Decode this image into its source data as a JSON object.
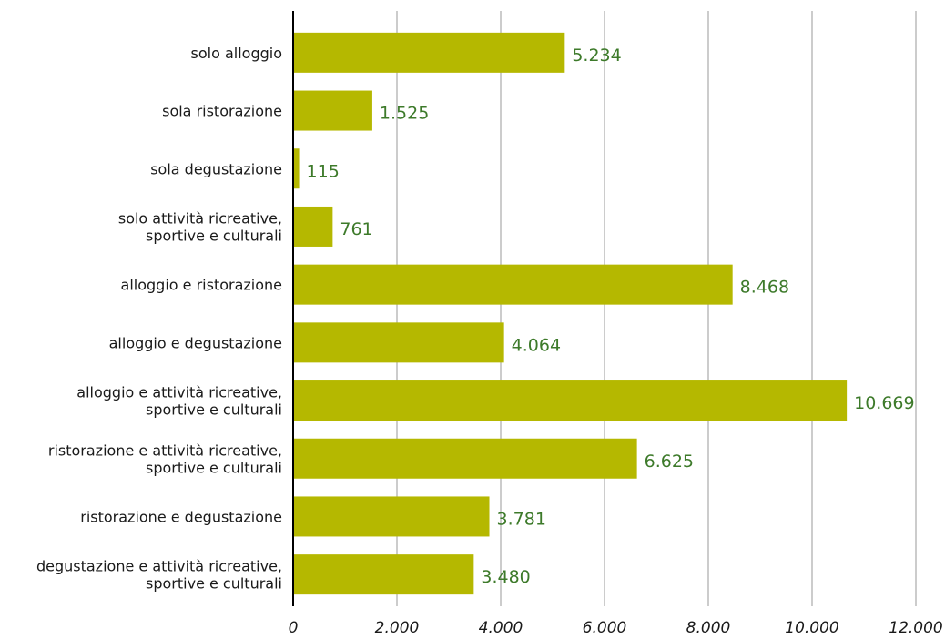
{
  "chart_data": {
    "type": "bar",
    "orientation": "horizontal",
    "categories": [
      [
        "solo alloggio"
      ],
      [
        "sola ristorazione"
      ],
      [
        "sola degustazione"
      ],
      [
        "solo attività ricreative,",
        "sportive e culturali"
      ],
      [
        "alloggio e ristorazione"
      ],
      [
        "alloggio e degustazione"
      ],
      [
        "alloggio e attività ricreative,",
        "sportive e culturali"
      ],
      [
        "ristorazione e attività ricreative,",
        "sportive e culturali"
      ],
      [
        "ristorazione e degustazione"
      ],
      [
        "degustazione e attività ricreative,",
        "sportive e culturali"
      ]
    ],
    "values": [
      5234,
      1525,
      115,
      761,
      8468,
      4064,
      10669,
      6625,
      3781,
      3480
    ],
    "value_labels": [
      "5.234",
      "1.525",
      "115",
      "761",
      "8.468",
      "4.064",
      "10.669",
      "6.625",
      "3.781",
      "3.480"
    ],
    "xlim": [
      0,
      12000
    ],
    "ticks": [
      0,
      2000,
      4000,
      6000,
      8000,
      10000,
      12000
    ],
    "tick_labels": [
      "0",
      "2.000",
      "4.000",
      "6.000",
      "8.000",
      "10.000",
      "12.000"
    ],
    "grid": true,
    "title": "",
    "xlabel": "",
    "ylabel": "",
    "bar_color": "#b5b800",
    "value_label_color": "#3d7a2a"
  }
}
